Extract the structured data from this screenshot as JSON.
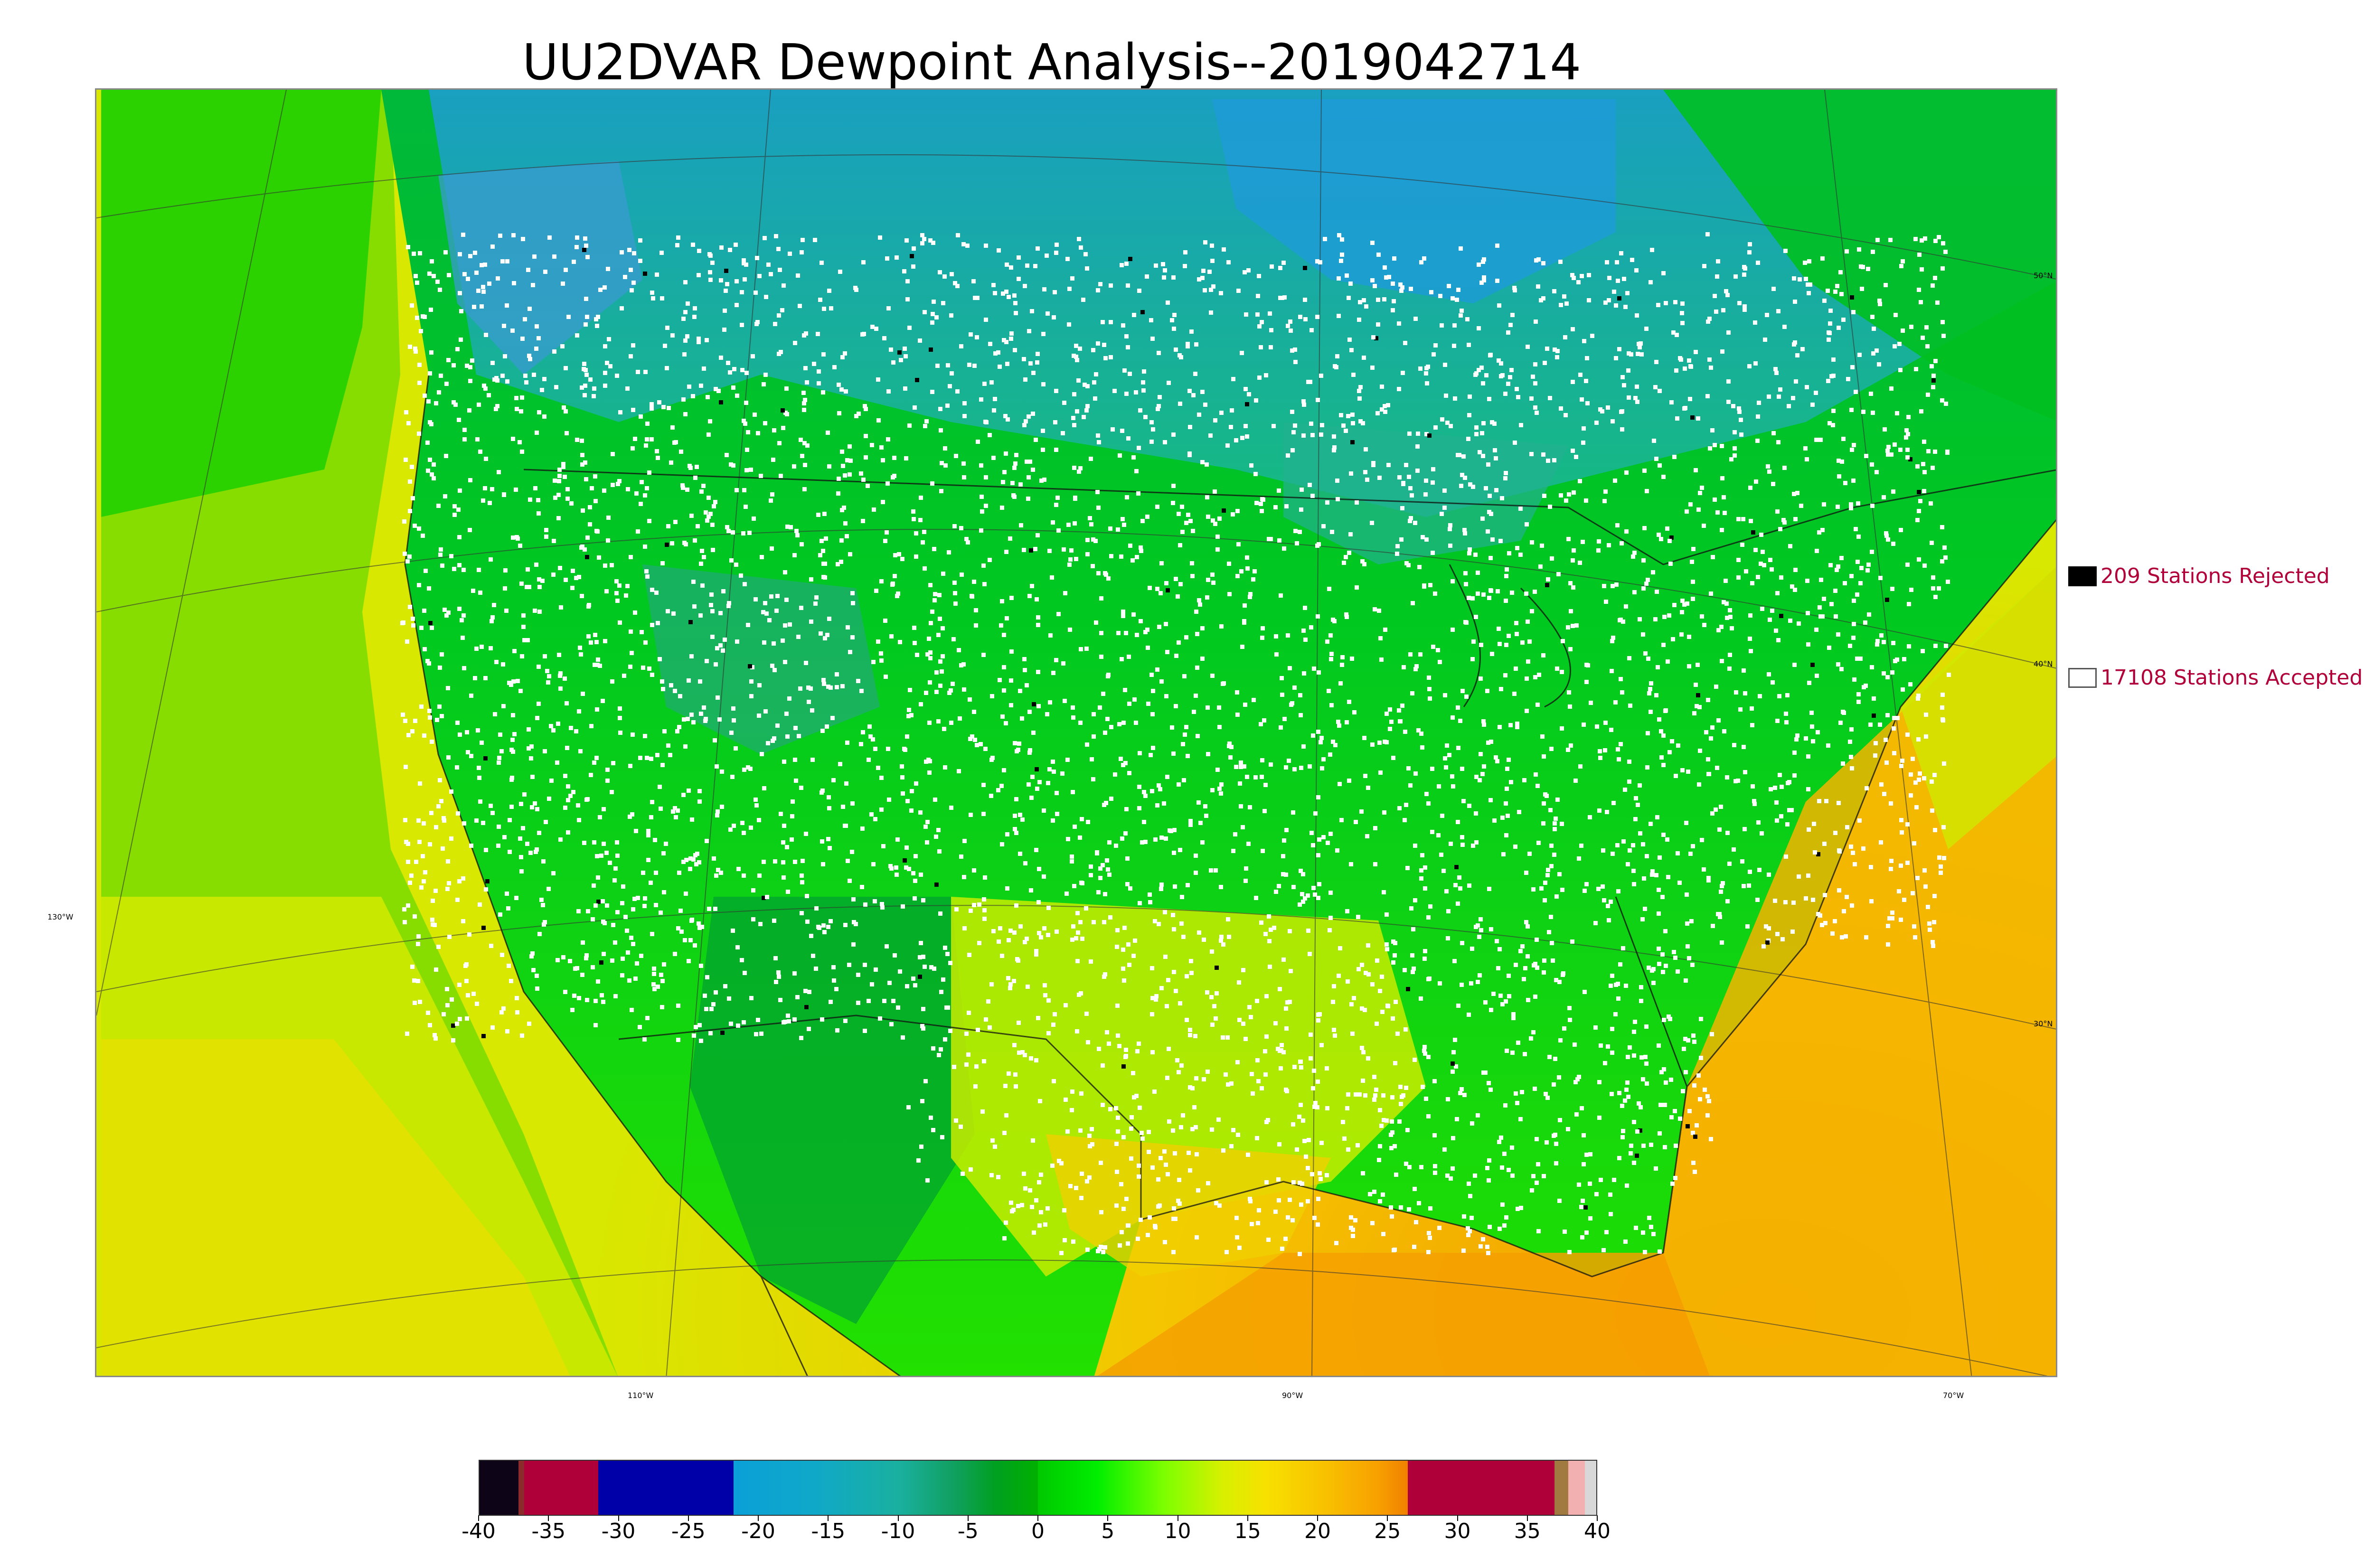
{
  "title": "UU2DVAR Dewpoint Analysis--2019042714",
  "map": {
    "lat_labels": [
      "50°N",
      "40°N",
      "30°N"
    ],
    "lon_labels": [
      "130°W",
      "110°W",
      "90°W",
      "70°W"
    ]
  },
  "legend": {
    "rejected": "209 Stations Rejected",
    "accepted": "17108 Stations Accepted",
    "rejected_color": "#000000",
    "accepted_color": "#ffffff",
    "text_color": "#b0003a"
  },
  "colorbar": {
    "ticks": [
      "-40",
      "-35",
      "-30",
      "-25",
      "-20",
      "-15",
      "-10",
      "-5",
      "0",
      "5",
      "10",
      "15",
      "20",
      "25",
      "30",
      "35",
      "40"
    ],
    "range": [
      -40,
      40
    ],
    "segments": [
      {
        "from": -40,
        "to": -37.2,
        "color": "#0d0418"
      },
      {
        "from": -37.2,
        "to": -36.8,
        "color": "#8c2b2b"
      },
      {
        "from": -36.8,
        "to": -31.5,
        "color": "#b0003a"
      },
      {
        "from": -31.5,
        "to": -21.8,
        "color": "#0000a8"
      },
      {
        "from": -21.8,
        "to": -10,
        "color": "gradient-blue"
      },
      {
        "from": -10,
        "to": 0,
        "color": "gradient-green"
      },
      {
        "from": 0,
        "to": 26.5,
        "color": "gradient-warm"
      },
      {
        "from": 26.5,
        "to": 37,
        "color": "#b0003a"
      },
      {
        "from": 37,
        "to": 38,
        "color": "#a07a40"
      },
      {
        "from": 38,
        "to": 39.2,
        "color": "#f2b0b0"
      },
      {
        "from": 39.2,
        "to": 40,
        "color": "#d8d8d8"
      }
    ]
  }
}
